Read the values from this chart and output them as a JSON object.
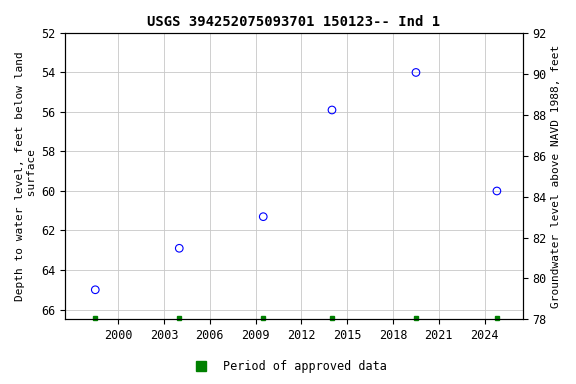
{
  "title": "USGS 394252075093701 150123-- Ind 1",
  "ylabel_left": "Depth to water level, feet below land\n surface",
  "ylabel_right": "Groundwater level above NAVD 1988, feet",
  "xlim": [
    1996.5,
    2026.5
  ],
  "ylim_left_top": 52,
  "ylim_left_bottom": 66.5,
  "ylim_right_top": 92,
  "ylim_right_bottom": 78,
  "xticks": [
    2000,
    2003,
    2006,
    2009,
    2012,
    2015,
    2018,
    2021,
    2024
  ],
  "yticks_left": [
    52,
    54,
    56,
    58,
    60,
    62,
    64,
    66
  ],
  "yticks_right": [
    78,
    80,
    82,
    84,
    86,
    88,
    90,
    92
  ],
  "data_x": [
    1998.5,
    2004.0,
    2009.5,
    2014.0,
    2019.5,
    2024.8
  ],
  "data_y": [
    65.0,
    62.9,
    61.3,
    55.9,
    54.0,
    60.0
  ],
  "point_color": "#0000FF",
  "point_size": 30,
  "green_bar_x": [
    1998.5,
    2004.0,
    2009.5,
    2014.0,
    2019.5,
    2024.8
  ],
  "background_color": "#ffffff",
  "grid_color": "#c8c8c8",
  "font_family": "monospace",
  "title_fontsize": 10,
  "axis_label_fontsize": 8,
  "tick_fontsize": 8.5,
  "legend_label": "Period of approved data",
  "legend_color": "#008000"
}
